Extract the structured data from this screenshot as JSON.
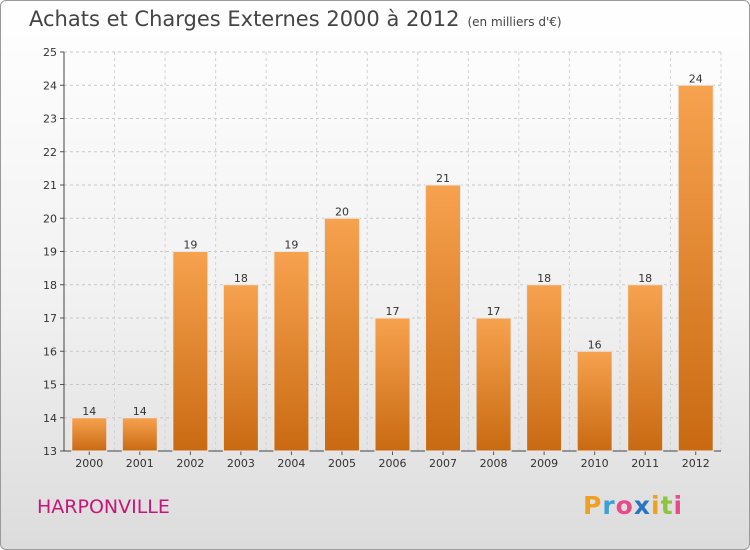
{
  "header": {
    "title": "Achats et Charges Externes 2000 à 2012",
    "unit": "(en milliers d'€)"
  },
  "footer": {
    "commune": "HARPONVILLE",
    "logo_letters": [
      "P",
      "r",
      "o",
      "x",
      "i",
      "t",
      "i"
    ],
    "logo_colors": [
      "#f0a020",
      "#3aa0d8",
      "#e84b8a",
      "#2a74c4",
      "#f0a020",
      "#8cc63f",
      "#e84b8a"
    ]
  },
  "colors": {
    "bar_top": "#f7a24f",
    "bar_bottom": "#c96a12",
    "title": "#444444",
    "commune": "#c8157a"
  },
  "chart_data": {
    "type": "bar",
    "title": "Achats et Charges Externes 2000 à 2012",
    "subtitle": "(en milliers d'€)",
    "categories": [
      "2000",
      "2001",
      "2002",
      "2003",
      "2004",
      "2005",
      "2006",
      "2007",
      "2008",
      "2009",
      "2010",
      "2011",
      "2012"
    ],
    "values": [
      14,
      14,
      19,
      18,
      19,
      20,
      17,
      21,
      17,
      18,
      16,
      18,
      24
    ],
    "ylim": [
      13,
      25
    ],
    "yticks": [
      13,
      14,
      15,
      16,
      17,
      18,
      19,
      20,
      21,
      22,
      23,
      24,
      25
    ],
    "grid": true,
    "xlabel": "",
    "ylabel": ""
  }
}
